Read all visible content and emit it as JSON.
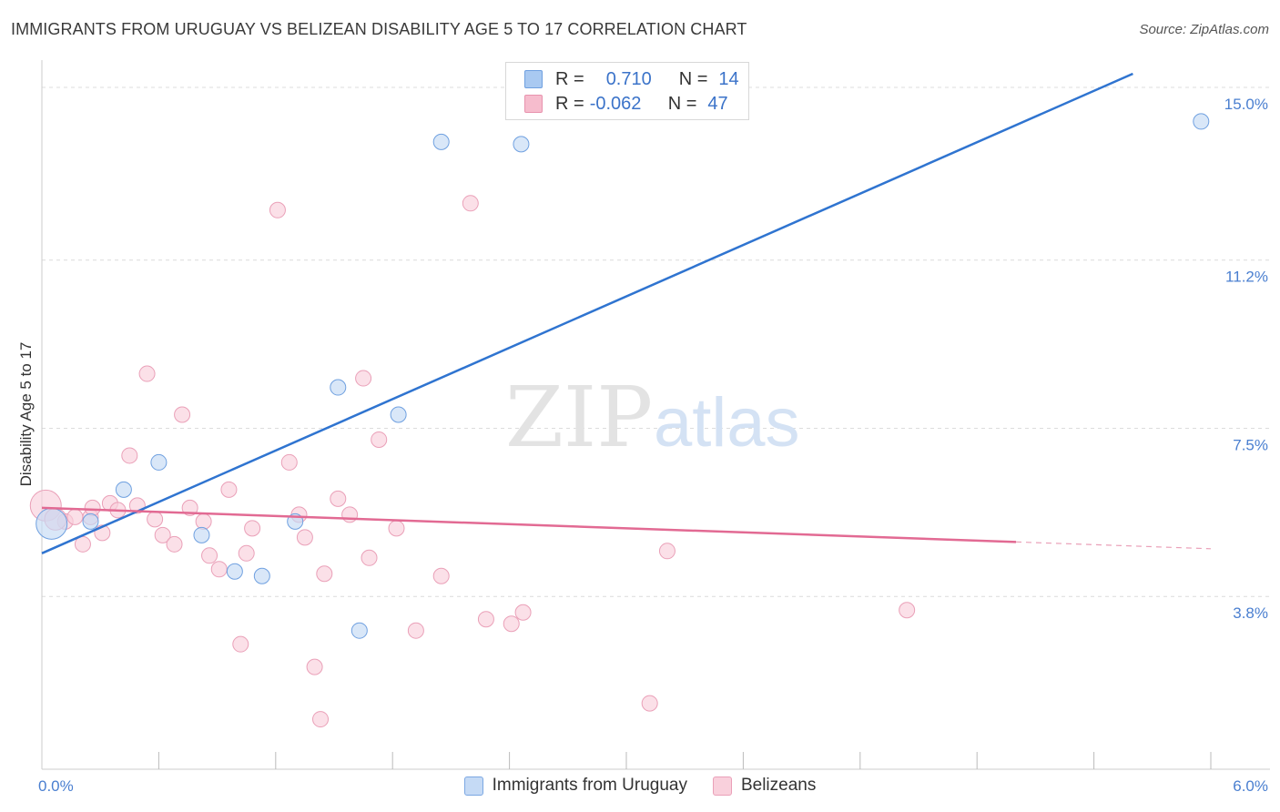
{
  "title": "IMMIGRANTS FROM URUGUAY VS BELIZEAN DISABILITY AGE 5 TO 17 CORRELATION CHART",
  "source": "Source: ZipAtlas.com",
  "watermark": {
    "zip": "ZIP",
    "atlas": "atlas"
  },
  "legend": {
    "rows": [
      {
        "r_label": "R =",
        "r_value": "0.710",
        "n_label": "N =",
        "n_value": "14",
        "color": "#a9c9f1",
        "border": "#6fa0e0"
      },
      {
        "r_label": "R =",
        "r_value": "-0.062",
        "n_label": "N =",
        "n_value": "47",
        "color": "#f6bccd",
        "border": "#e893ae"
      }
    ]
  },
  "bottom_legend": [
    {
      "label": "Immigrants from Uruguay",
      "color": "#c5daf5",
      "border": "#7ba7e2"
    },
    {
      "label": "Belizeans",
      "color": "#f9d0dc",
      "border": "#eaa0b8"
    }
  ],
  "chart_data": {
    "type": "scatter",
    "xlabel": "",
    "ylabel": "Disability Age 5 to 17",
    "xlim": [
      0,
      6
    ],
    "ylim": [
      0,
      15.5
    ],
    "x_tick_labels": [
      "0.0%",
      "6.0%"
    ],
    "y_ticks": [
      {
        "value": 3.8,
        "label": "3.8%"
      },
      {
        "value": 7.5,
        "label": "7.5%"
      },
      {
        "value": 11.2,
        "label": "11.2%"
      },
      {
        "value": 15.0,
        "label": "15.0%"
      }
    ],
    "series": [
      {
        "name": "Immigrants from Uruguay",
        "color": "#6fa0e0",
        "fill": "#c5daf5",
        "points": [
          [
            0.05,
            5.4
          ],
          [
            0.25,
            5.45
          ],
          [
            0.42,
            6.15
          ],
          [
            0.6,
            6.75
          ],
          [
            0.82,
            5.15
          ],
          [
            0.99,
            4.35
          ],
          [
            1.13,
            4.25
          ],
          [
            1.3,
            5.45
          ],
          [
            1.52,
            8.4
          ],
          [
            1.63,
            3.05
          ],
          [
            1.83,
            7.8
          ],
          [
            2.05,
            13.8
          ],
          [
            2.46,
            13.75
          ],
          [
            5.95,
            14.25
          ]
        ],
        "trend": {
          "x0": 0,
          "y0": 4.75,
          "x1": 5.6,
          "y1": 15.3
        }
      },
      {
        "name": "Belizeans",
        "color": "#eaa0b8",
        "fill": "#f9d0dc",
        "points": [
          [
            0.02,
            5.8
          ],
          [
            0.12,
            5.45
          ],
          [
            0.17,
            5.55
          ],
          [
            0.21,
            4.95
          ],
          [
            0.25,
            5.55
          ],
          [
            0.26,
            5.75
          ],
          [
            0.31,
            5.2
          ],
          [
            0.35,
            5.85
          ],
          [
            0.39,
            5.7
          ],
          [
            0.45,
            6.9
          ],
          [
            0.49,
            5.8
          ],
          [
            0.54,
            8.7
          ],
          [
            0.58,
            5.5
          ],
          [
            0.62,
            5.15
          ],
          [
            0.68,
            4.95
          ],
          [
            0.72,
            7.8
          ],
          [
            0.76,
            5.75
          ],
          [
            0.83,
            5.45
          ],
          [
            0.86,
            4.7
          ],
          [
            0.91,
            4.4
          ],
          [
            0.96,
            6.15
          ],
          [
            1.02,
            2.75
          ],
          [
            1.05,
            4.75
          ],
          [
            1.08,
            5.3
          ],
          [
            1.21,
            12.3
          ],
          [
            1.27,
            6.75
          ],
          [
            1.32,
            5.6
          ],
          [
            1.35,
            5.1
          ],
          [
            1.4,
            2.25
          ],
          [
            1.43,
            1.1
          ],
          [
            1.45,
            4.3
          ],
          [
            1.52,
            5.95
          ],
          [
            1.58,
            5.6
          ],
          [
            1.65,
            8.6
          ],
          [
            1.68,
            4.65
          ],
          [
            1.73,
            7.25
          ],
          [
            1.82,
            5.3
          ],
          [
            1.92,
            3.05
          ],
          [
            2.05,
            4.25
          ],
          [
            2.2,
            12.45
          ],
          [
            2.28,
            3.3
          ],
          [
            2.41,
            3.2
          ],
          [
            2.47,
            3.45
          ],
          [
            3.12,
            1.45
          ],
          [
            3.21,
            4.8
          ],
          [
            4.44,
            3.5
          ],
          [
            0.07,
            5.5
          ]
        ],
        "trend": {
          "x0": 0,
          "y0": 5.75,
          "x1": 5.0,
          "y1": 5.0
        },
        "trend_dashed": {
          "x0": 5.0,
          "y0": 5.0,
          "x1": 6.0,
          "y1": 4.85
        }
      }
    ]
  }
}
